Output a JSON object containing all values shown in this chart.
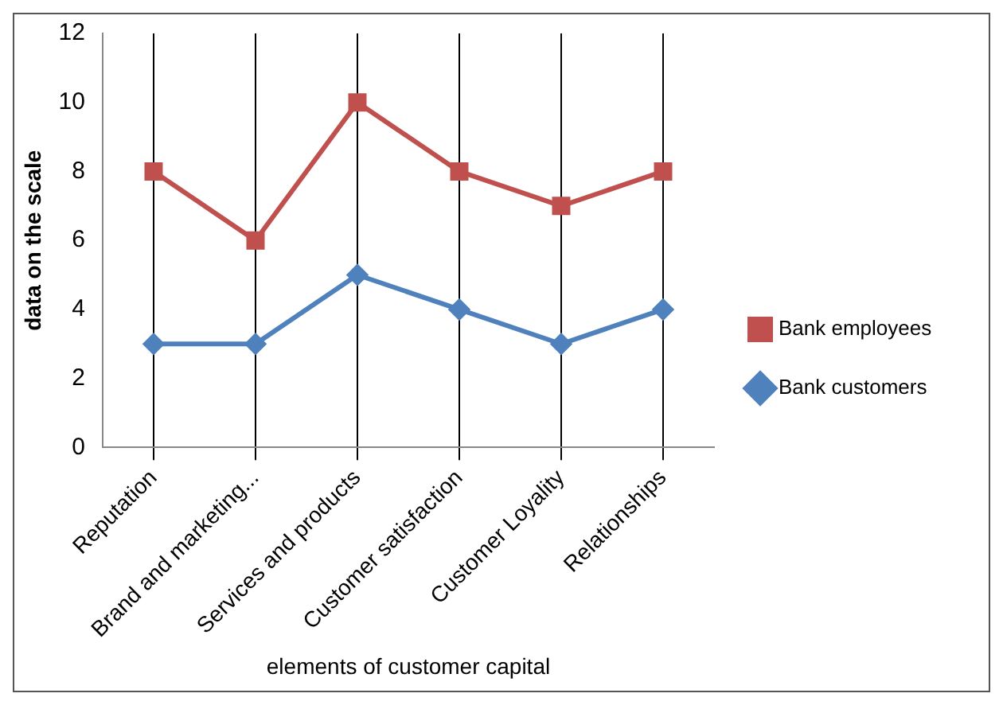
{
  "chart_data": {
    "type": "line",
    "xlabel": "elements of customer capital",
    "ylabel": "data on the scale",
    "categories": [
      "Reputation",
      "Brand and marketing...",
      "Services and products",
      "Customer satisfaction",
      "Customer Loyality",
      "Relationships"
    ],
    "series": [
      {
        "name": "Bank employees",
        "color": "#c0504d",
        "marker": "square",
        "values": [
          8,
          6,
          10,
          8,
          7,
          8
        ]
      },
      {
        "name": "Bank customers",
        "color": "#4f81bd",
        "marker": "diamond",
        "values": [
          3,
          3,
          5,
          4,
          3,
          4
        ]
      }
    ],
    "ylim": [
      0,
      12
    ],
    "yticks": [
      0,
      2,
      4,
      6,
      8,
      10,
      12
    ],
    "grid": "x",
    "legend": "right"
  }
}
